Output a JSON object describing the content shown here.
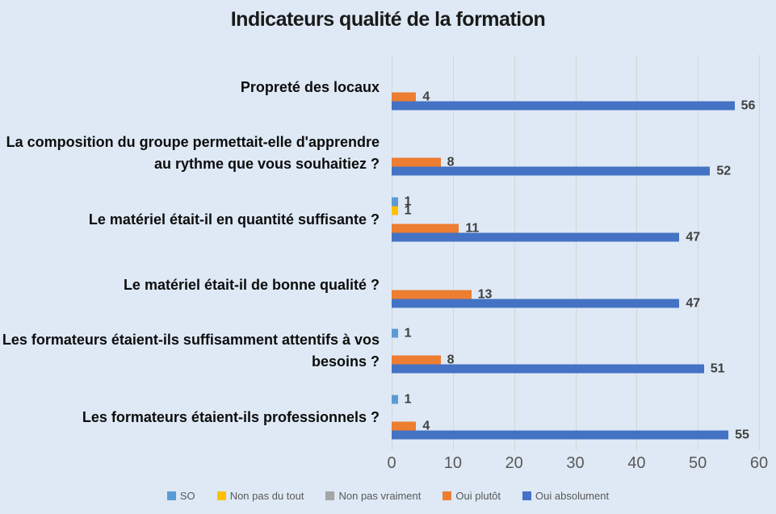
{
  "title": "Indicateurs qualité de la formation",
  "chart_data": {
    "type": "bar",
    "orientation": "horizontal",
    "title": "Indicateurs qualité de la formation",
    "categories": [
      "Propreté des locaux",
      "La composition du groupe permettait-elle d'apprendre au rythme que vous souhaitiez ?",
      "Le matériel était-il en quantité suffisante ?",
      "Le matériel était-il de bonne qualité ?",
      "Les formateurs étaient-ils suffisamment attentifs à vos besoins ?",
      "Les formateurs étaient-ils  professionnels ?"
    ],
    "series": [
      {
        "name": "SO",
        "color": "#5B9BD5",
        "values": [
          null,
          null,
          1,
          null,
          1,
          1
        ]
      },
      {
        "name": "Non pas du tout",
        "color": "#FFC000",
        "values": [
          null,
          null,
          1,
          null,
          null,
          null
        ]
      },
      {
        "name": "Non pas vraiment",
        "color": "#A5A5A5",
        "values": [
          null,
          null,
          null,
          null,
          null,
          null
        ]
      },
      {
        "name": "Oui plutôt",
        "color": "#ED7D31",
        "values": [
          4,
          8,
          11,
          13,
          8,
          4
        ]
      },
      {
        "name": "Oui absolument",
        "color": "#4472C4",
        "values": [
          56,
          52,
          47,
          47,
          51,
          55
        ]
      }
    ],
    "xlim": [
      0,
      60
    ],
    "x_ticks": [
      0,
      10,
      20,
      30,
      40,
      50,
      60
    ],
    "grid": true,
    "legend_position": "bottom"
  },
  "colors": {
    "background": "#dee9f5",
    "gridline": "#d5d5d3",
    "title_text": "#1a1a1a",
    "category_text": "#0d0d0d",
    "data_label": "#3f3f3f",
    "axis_text": "#595959",
    "legend_text": "#595959"
  }
}
